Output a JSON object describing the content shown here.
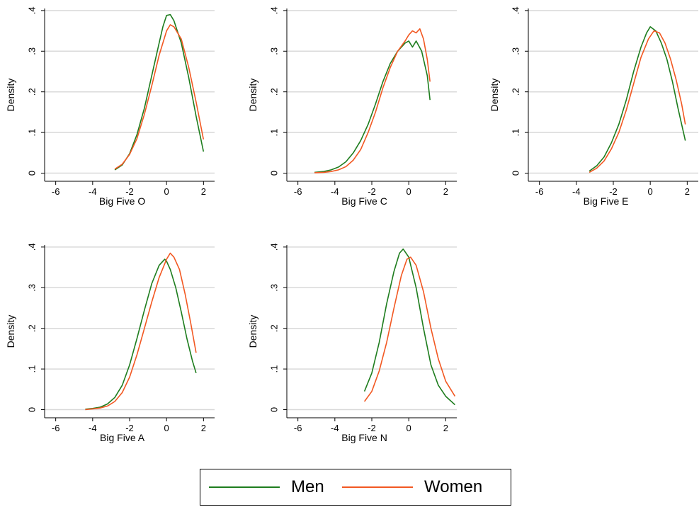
{
  "colors": {
    "Men": "#1e7d1e",
    "Women": "#f25822",
    "grid": "#d9d9d9",
    "axis": "#000000"
  },
  "legend": {
    "men_label": "Men",
    "women_label": "Women"
  },
  "chart_data": [
    {
      "type": "line",
      "xlabel": "Big Five O",
      "ylabel": "Density",
      "xticks": [
        "-6",
        "-4",
        "-2",
        "0",
        "2"
      ],
      "yticks": [
        ".4",
        ".3",
        ".2",
        ".1",
        "0"
      ],
      "xlim": [
        -6.6,
        2.6
      ],
      "ylim": [
        -0.02,
        0.405
      ],
      "series": [
        {
          "name": "Men",
          "x": [
            -2.8,
            -2.4,
            -2.0,
            -1.6,
            -1.2,
            -0.8,
            -0.4,
            -0.2,
            0.0,
            0.2,
            0.4,
            0.8,
            1.2,
            1.6,
            2.0
          ],
          "y": [
            0.008,
            0.02,
            0.048,
            0.095,
            0.16,
            0.24,
            0.32,
            0.36,
            0.388,
            0.39,
            0.375,
            0.32,
            0.235,
            0.14,
            0.053
          ]
        },
        {
          "name": "Women",
          "x": [
            -2.8,
            -2.4,
            -2.0,
            -1.6,
            -1.2,
            -0.8,
            -0.4,
            0.0,
            0.2,
            0.4,
            0.8,
            1.2,
            1.6,
            2.0
          ],
          "y": [
            0.01,
            0.022,
            0.046,
            0.085,
            0.145,
            0.215,
            0.29,
            0.35,
            0.365,
            0.36,
            0.33,
            0.26,
            0.175,
            0.083
          ]
        }
      ]
    },
    {
      "type": "line",
      "xlabel": "Big Five C",
      "ylabel": "Density",
      "xticks": [
        "-6",
        "-4",
        "-2",
        "0",
        "2"
      ],
      "yticks": [
        ".4",
        ".3",
        ".2",
        ".1",
        "0"
      ],
      "xlim": [
        -6.6,
        2.6
      ],
      "ylim": [
        -0.02,
        0.405
      ],
      "series": [
        {
          "name": "Men",
          "x": [
            -5.1,
            -4.6,
            -4.2,
            -3.8,
            -3.4,
            -3.0,
            -2.6,
            -2.2,
            -1.8,
            -1.4,
            -1.0,
            -0.6,
            -0.2,
            0.0,
            0.2,
            0.4,
            0.7,
            1.0,
            1.15
          ],
          "y": [
            0.002,
            0.004,
            0.008,
            0.015,
            0.028,
            0.05,
            0.08,
            0.12,
            0.17,
            0.225,
            0.27,
            0.3,
            0.32,
            0.325,
            0.31,
            0.325,
            0.3,
            0.24,
            0.18
          ]
        },
        {
          "name": "Women",
          "x": [
            -5.1,
            -4.6,
            -4.2,
            -3.8,
            -3.4,
            -3.0,
            -2.6,
            -2.2,
            -1.8,
            -1.4,
            -1.0,
            -0.6,
            -0.2,
            0.0,
            0.2,
            0.4,
            0.6,
            0.8,
            1.0,
            1.15
          ],
          "y": [
            0.001,
            0.002,
            0.004,
            0.008,
            0.016,
            0.032,
            0.058,
            0.1,
            0.15,
            0.21,
            0.26,
            0.3,
            0.325,
            0.34,
            0.35,
            0.345,
            0.355,
            0.33,
            0.28,
            0.225
          ]
        }
      ]
    },
    {
      "type": "line",
      "xlabel": "Big Five E",
      "ylabel": "Density",
      "xticks": [
        "-6",
        "-4",
        "-2",
        "0",
        "2"
      ],
      "yticks": [
        ".4",
        ".3",
        ".2",
        ".1",
        "0"
      ],
      "xlim": [
        -6.6,
        2.6
      ],
      "ylim": [
        -0.02,
        0.405
      ],
      "series": [
        {
          "name": "Men",
          "x": [
            -3.3,
            -2.9,
            -2.5,
            -2.1,
            -1.7,
            -1.3,
            -0.9,
            -0.5,
            -0.2,
            0.0,
            0.3,
            0.6,
            0.9,
            1.2,
            1.5,
            1.9
          ],
          "y": [
            0.005,
            0.018,
            0.04,
            0.075,
            0.12,
            0.18,
            0.25,
            0.31,
            0.345,
            0.36,
            0.35,
            0.32,
            0.28,
            0.225,
            0.16,
            0.08
          ]
        },
        {
          "name": "Women",
          "x": [
            -3.3,
            -2.9,
            -2.5,
            -2.1,
            -1.7,
            -1.3,
            -0.9,
            -0.5,
            -0.1,
            0.2,
            0.5,
            0.8,
            1.1,
            1.4,
            1.7,
            1.9
          ],
          "y": [
            0.002,
            0.012,
            0.03,
            0.06,
            0.1,
            0.155,
            0.22,
            0.285,
            0.33,
            0.35,
            0.345,
            0.32,
            0.28,
            0.23,
            0.17,
            0.12
          ]
        }
      ]
    },
    {
      "type": "line",
      "xlabel": "Big Five A",
      "ylabel": "Density",
      "xticks": [
        "-6",
        "-4",
        "-2",
        "0",
        "2"
      ],
      "yticks": [
        ".4",
        ".3",
        ".2",
        ".1",
        "0"
      ],
      "xlim": [
        -6.6,
        2.6
      ],
      "ylim": [
        -0.02,
        0.405
      ],
      "series": [
        {
          "name": "Men",
          "x": [
            -4.4,
            -4.0,
            -3.6,
            -3.2,
            -2.8,
            -2.4,
            -2.0,
            -1.6,
            -1.2,
            -0.8,
            -0.4,
            -0.1,
            0.0,
            0.2,
            0.5,
            0.8,
            1.1,
            1.4,
            1.6
          ],
          "y": [
            0.001,
            0.003,
            0.006,
            0.014,
            0.03,
            0.06,
            0.11,
            0.175,
            0.245,
            0.31,
            0.355,
            0.37,
            0.365,
            0.345,
            0.3,
            0.24,
            0.175,
            0.12,
            0.09
          ]
        },
        {
          "name": "Women",
          "x": [
            -4.4,
            -4.0,
            -3.6,
            -3.2,
            -2.8,
            -2.4,
            -2.0,
            -1.6,
            -1.2,
            -0.8,
            -0.4,
            0.0,
            0.2,
            0.4,
            0.7,
            1.0,
            1.3,
            1.6
          ],
          "y": [
            0.0,
            0.002,
            0.004,
            0.009,
            0.02,
            0.042,
            0.08,
            0.135,
            0.2,
            0.265,
            0.325,
            0.37,
            0.385,
            0.375,
            0.345,
            0.285,
            0.215,
            0.14
          ]
        }
      ]
    },
    {
      "type": "line",
      "xlabel": "Big Five N",
      "ylabel": "Density",
      "xticks": [
        "-6",
        "-4",
        "-2",
        "0",
        "2"
      ],
      "yticks": [
        ".4",
        ".3",
        ".2",
        ".1",
        "0"
      ],
      "xlim": [
        -6.6,
        2.6
      ],
      "ylim": [
        -0.02,
        0.405
      ],
      "series": [
        {
          "name": "Men",
          "x": [
            -2.4,
            -2.0,
            -1.6,
            -1.2,
            -0.8,
            -0.5,
            -0.3,
            0.0,
            0.4,
            0.8,
            1.2,
            1.6,
            2.0,
            2.5
          ],
          "y": [
            0.045,
            0.09,
            0.165,
            0.26,
            0.34,
            0.385,
            0.395,
            0.375,
            0.3,
            0.2,
            0.11,
            0.06,
            0.033,
            0.012
          ]
        },
        {
          "name": "Women",
          "x": [
            -2.4,
            -2.0,
            -1.6,
            -1.2,
            -0.8,
            -0.4,
            -0.1,
            0.1,
            0.4,
            0.8,
            1.2,
            1.6,
            2.0,
            2.5
          ],
          "y": [
            0.02,
            0.045,
            0.095,
            0.165,
            0.25,
            0.33,
            0.37,
            0.375,
            0.355,
            0.29,
            0.2,
            0.125,
            0.07,
            0.033
          ]
        }
      ]
    }
  ]
}
